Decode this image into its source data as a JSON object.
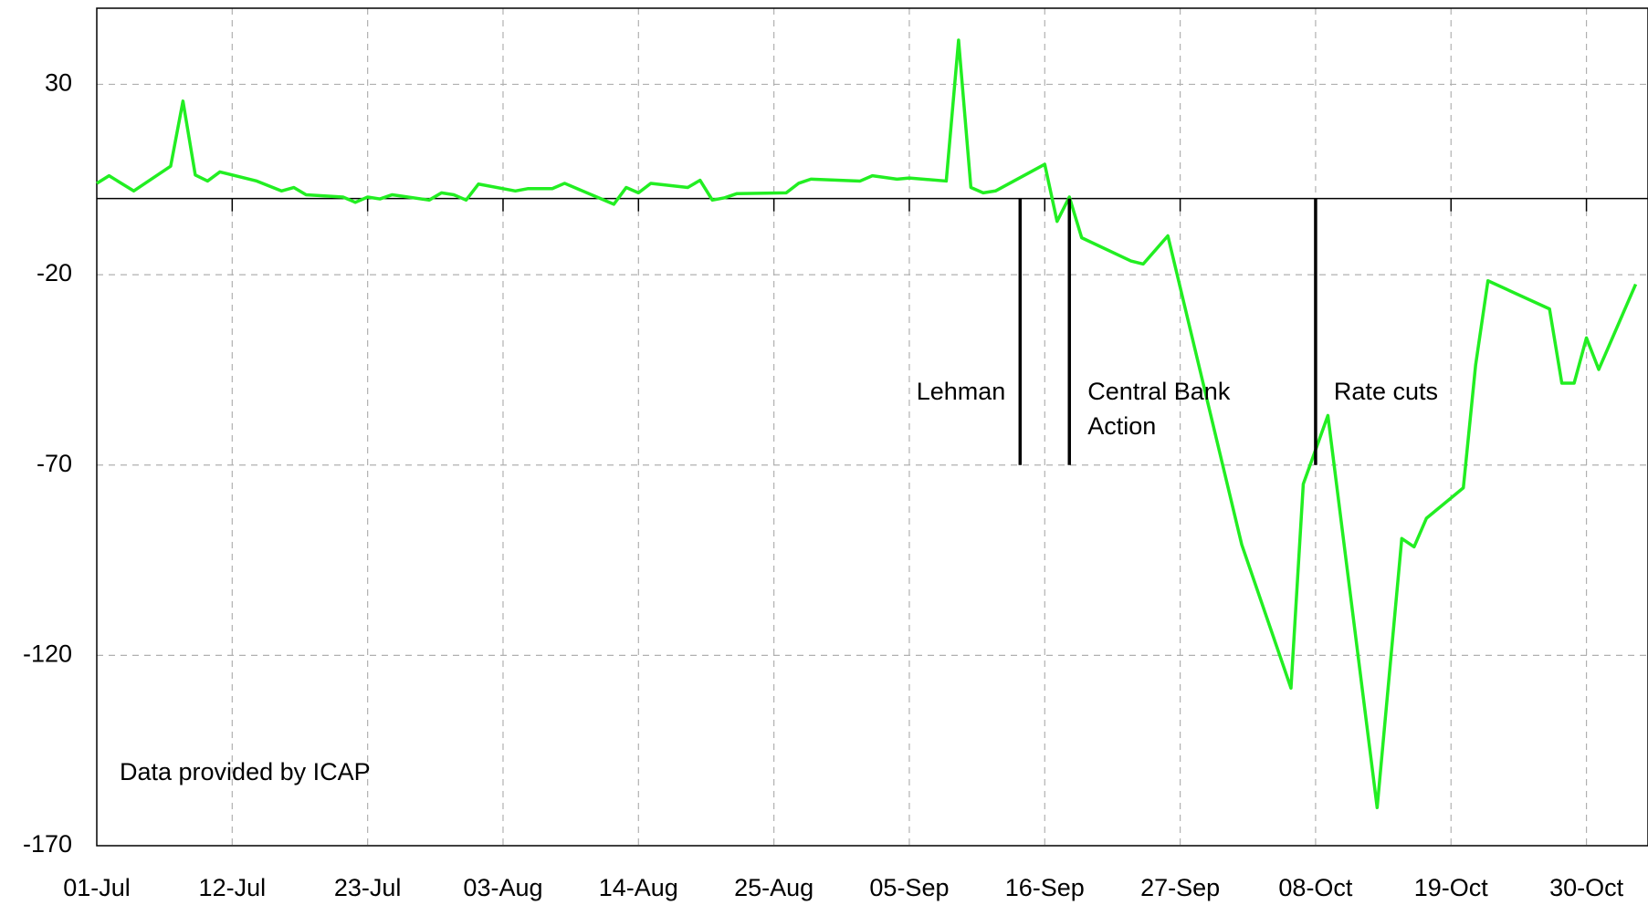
{
  "chart_data": {
    "type": "line",
    "x": [
      "01-Jul",
      "02-Jul",
      "03-Jul",
      "04-Jul",
      "07-Jul",
      "08-Jul",
      "09-Jul",
      "10-Jul",
      "11-Jul",
      "14-Jul",
      "16-Jul",
      "17-Jul",
      "18-Jul",
      "21-Jul",
      "22-Jul",
      "23-Jul",
      "24-Jul",
      "25-Jul",
      "28-Jul",
      "29-Jul",
      "30-Jul",
      "31-Jul",
      "01-Aug",
      "04-Aug",
      "05-Aug",
      "07-Aug",
      "08-Aug",
      "12-Aug",
      "13-Aug",
      "14-Aug",
      "15-Aug",
      "18-Aug",
      "19-Aug",
      "20-Aug",
      "21-Aug",
      "22-Aug",
      "26-Aug",
      "27-Aug",
      "28-Aug",
      "01-Sep",
      "02-Sep",
      "04-Sep",
      "05-Sep",
      "08-Sep",
      "09-Sep",
      "10-Sep",
      "11-Sep",
      "12-Sep",
      "16-Sep",
      "17-Sep",
      "18-Sep",
      "19-Sep",
      "23-Sep",
      "24-Sep",
      "26-Sep",
      "02-Oct",
      "06-Oct",
      "07-Oct",
      "09-Oct",
      "13-Oct",
      "15-Oct",
      "16-Oct",
      "17-Oct",
      "20-Oct",
      "21-Oct",
      "22-Oct",
      "27-Oct",
      "28-Oct",
      "29-Oct",
      "30-Oct",
      "31-Oct",
      "03-Nov"
    ],
    "series": [
      {
        "color": "#22ee22",
        "values": [
          4,
          6,
          4,
          2,
          8.5,
          25.6,
          6.2,
          4.6,
          7,
          4.6,
          2,
          2.9,
          1,
          0.4,
          -1,
          0.4,
          -0.1,
          1,
          -0.4,
          1.5,
          1,
          -0.4,
          3.8,
          2,
          2.6,
          2.6,
          4,
          -1.5,
          2.9,
          1.5,
          4,
          2.9,
          4.8,
          -0.4,
          0.2,
          1.3,
          1.5,
          4,
          5.1,
          4.6,
          6,
          5.1,
          5.4,
          4.6,
          41.6,
          2.9,
          1.5,
          2,
          9,
          -6,
          0.4,
          -10.3,
          -16.4,
          -17.2,
          -9.8,
          -90.9,
          -128.6,
          -75,
          -57,
          -160,
          -89.3,
          -91.5,
          -84,
          -76,
          -43.7,
          -21.6,
          -29,
          -48.5,
          -48.5,
          -36.6,
          -44.9,
          -22.5
        ]
      }
    ],
    "xlim": [
      "01-Jul",
      "04-Nov"
    ],
    "xticks": [
      "01-Jul",
      "12-Jul",
      "23-Jul",
      "03-Aug",
      "14-Aug",
      "25-Aug",
      "05-Sep",
      "16-Sep",
      "27-Sep",
      "08-Oct",
      "19-Oct",
      "30-Oct"
    ],
    "ylim": [
      -170,
      50
    ],
    "yticks": [
      -170,
      -120,
      -70,
      -20,
      30
    ],
    "grid": true,
    "annotations": [
      {
        "lines": [
          "Lehman"
        ],
        "x": "14-Sep",
        "range": [
          0,
          -70
        ],
        "side": "left"
      },
      {
        "lines": [
          "Central Bank",
          "Action"
        ],
        "x": "18-Sep",
        "range": [
          0,
          -70
        ],
        "side": "right"
      },
      {
        "lines": [
          "Rate cuts"
        ],
        "x": "08-Oct",
        "range": [
          0,
          -70
        ],
        "side": "right"
      }
    ],
    "note": "Data provided by ICAP"
  }
}
